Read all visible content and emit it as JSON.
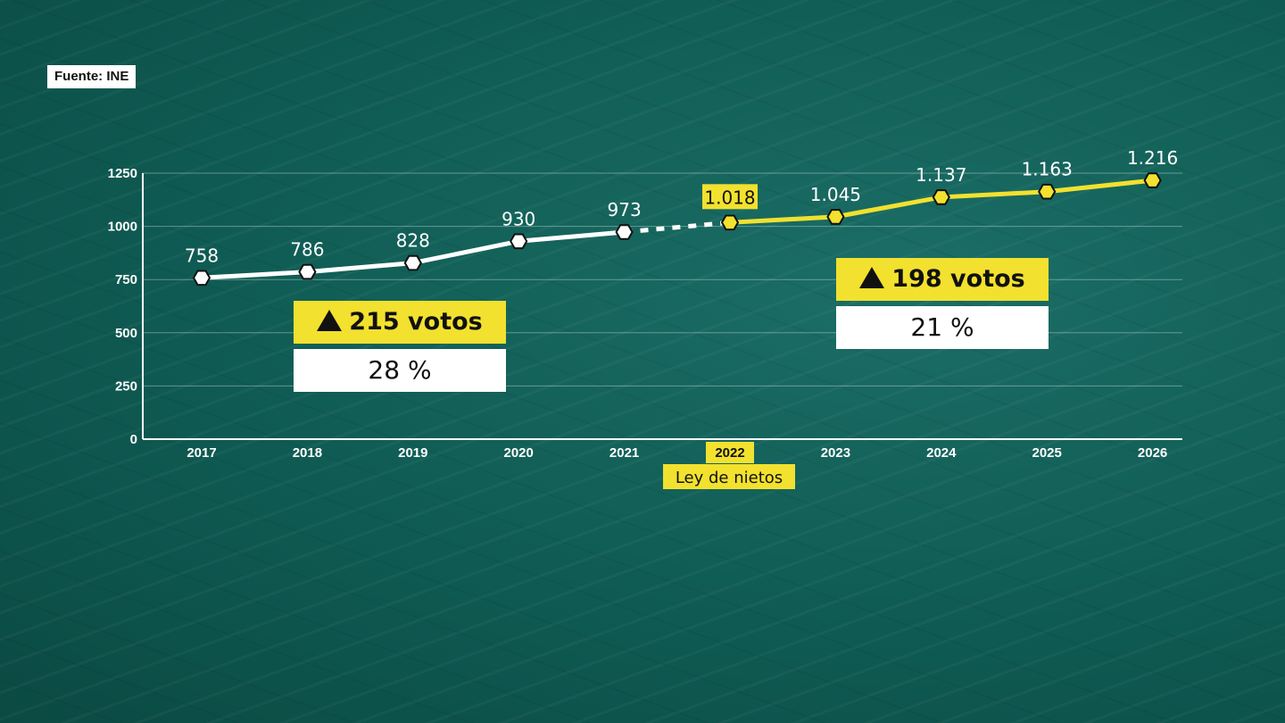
{
  "source": "Fuente: INE",
  "chart_data": {
    "type": "line",
    "categories": [
      "2017",
      "2018",
      "2019",
      "2020",
      "2021",
      "2022",
      "2023",
      "2024",
      "2025",
      "2026"
    ],
    "value_labels": [
      "758",
      "786",
      "828",
      "930",
      "973",
      "1.018",
      "1.045",
      "1.137",
      "1.163",
      "1.216"
    ],
    "series": [
      {
        "values": [
          758,
          786,
          828,
          930,
          973,
          null,
          null,
          null,
          null,
          null
        ],
        "color": "#ffffff"
      },
      {
        "values": [
          null,
          null,
          null,
          null,
          null,
          1018,
          1045,
          1137,
          1163,
          1216
        ],
        "color": "#f2e12e"
      }
    ],
    "dashed_between": [
      "2021",
      "2022"
    ],
    "yticks": [
      "0",
      "250",
      "500",
      "750",
      "1000",
      "1250"
    ],
    "ylim": [
      0,
      1250
    ],
    "grid": true,
    "highlight_category": "2022",
    "annotation": "Ley de nietos",
    "boxes": [
      {
        "headline": "215 votos",
        "percent": "28 %"
      },
      {
        "headline": "198 votos",
        "percent": "21 %"
      }
    ]
  },
  "colors": {
    "accent": "#f2e12e",
    "line": "#ffffff",
    "background": "#0e5a52"
  }
}
